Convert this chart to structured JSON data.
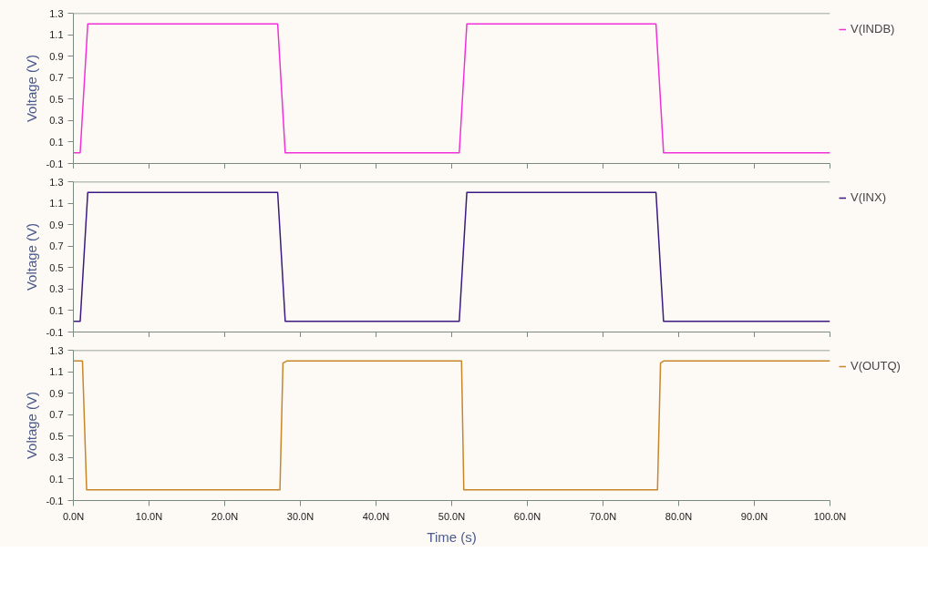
{
  "chart_data": [
    {
      "type": "line",
      "ylabel": "Voltage (V)",
      "xlim": [
        0,
        100
      ],
      "ylim": [
        -0.1,
        1.3
      ],
      "xticks": [
        {
          "value": 0,
          "label": null
        },
        {
          "value": 10,
          "label": null
        },
        {
          "value": 20,
          "label": null
        },
        {
          "value": 30,
          "label": null
        },
        {
          "value": 40,
          "label": null
        },
        {
          "value": 50,
          "label": null
        },
        {
          "value": 60,
          "label": null
        },
        {
          "value": 70,
          "label": null
        },
        {
          "value": 80,
          "label": null
        },
        {
          "value": 90,
          "label": null
        },
        {
          "value": 100,
          "label": null
        }
      ],
      "yticks": [
        -0.1,
        0.1,
        0.3,
        0.5,
        0.7,
        0.9,
        1.1,
        1.3
      ],
      "tick_labels": "y",
      "grid": false,
      "legend": "right",
      "series": [
        {
          "name": "V(INDB)",
          "color": "#f030d8",
          "x": [
            0,
            0.9,
            1.9,
            27.0,
            28.0,
            51.0,
            52.0,
            77.0,
            78.0,
            100
          ],
          "values": [
            0,
            0,
            1.2,
            1.2,
            0,
            0,
            1.2,
            1.2,
            0,
            0
          ]
        }
      ]
    },
    {
      "type": "line",
      "ylabel": "Voltage (V)",
      "xlim": [
        0,
        100
      ],
      "ylim": [
        -0.1,
        1.3
      ],
      "xticks": [
        {
          "value": 0,
          "label": null
        },
        {
          "value": 10,
          "label": null
        },
        {
          "value": 20,
          "label": null
        },
        {
          "value": 30,
          "label": null
        },
        {
          "value": 40,
          "label": null
        },
        {
          "value": 50,
          "label": null
        },
        {
          "value": 60,
          "label": null
        },
        {
          "value": 70,
          "label": null
        },
        {
          "value": 80,
          "label": null
        },
        {
          "value": 90,
          "label": null
        },
        {
          "value": 100,
          "label": null
        }
      ],
      "yticks": [
        -0.1,
        0.1,
        0.3,
        0.5,
        0.7,
        0.9,
        1.1,
        1.3
      ],
      "tick_labels": "y",
      "grid": false,
      "legend": "right",
      "series": [
        {
          "name": "V(INX)",
          "color": "#3a1a80",
          "x": [
            0,
            0.9,
            1.9,
            27.0,
            28.0,
            51.0,
            52.0,
            77.0,
            78.0,
            100
          ],
          "values": [
            0,
            0,
            1.2,
            1.2,
            0,
            0,
            1.2,
            1.2,
            0,
            0
          ]
        }
      ]
    },
    {
      "type": "line",
      "xlabel": "Time (s)",
      "ylabel": "Voltage (V)",
      "xlim": [
        0,
        100
      ],
      "ylim": [
        -0.1,
        1.3
      ],
      "xticks": [
        {
          "value": 0,
          "label": "0.0N"
        },
        {
          "value": 10,
          "label": "10.0N"
        },
        {
          "value": 20,
          "label": "20.0N"
        },
        {
          "value": 30,
          "label": "30.0N"
        },
        {
          "value": 40,
          "label": "40.0N"
        },
        {
          "value": 50,
          "label": "50.0N"
        },
        {
          "value": 60,
          "label": "60.0N"
        },
        {
          "value": 70,
          "label": "70.0N"
        },
        {
          "value": 80,
          "label": "80.0N"
        },
        {
          "value": 90,
          "label": "90.0N"
        },
        {
          "value": 100,
          "label": "100.0N"
        }
      ],
      "yticks": [
        -0.1,
        0.1,
        0.3,
        0.5,
        0.7,
        0.9,
        1.1,
        1.3
      ],
      "grid": false,
      "legend": "right",
      "series": [
        {
          "name": "V(OUTQ)",
          "color": "#c8862a",
          "x": [
            0,
            1.2,
            1.75,
            27.3,
            27.7,
            28.2,
            51.3,
            51.6,
            77.2,
            77.6,
            78.0,
            100
          ],
          "values": [
            1.2,
            1.2,
            0,
            0,
            1.18,
            1.2,
            1.2,
            0,
            0,
            1.18,
            1.2,
            1.2
          ]
        }
      ]
    }
  ]
}
